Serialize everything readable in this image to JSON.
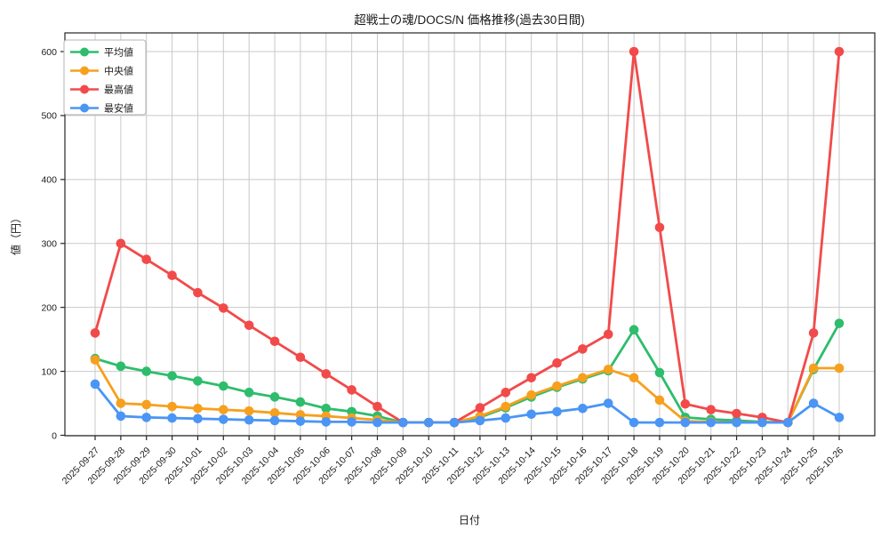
{
  "chart_data": {
    "type": "line",
    "title": "超戦士の魂/DOCS/N 価格推移(過去30日間)",
    "xlabel": "日付",
    "ylabel": "値（円）",
    "ylim": [
      0,
      630
    ],
    "yticks": [
      0,
      100,
      200,
      300,
      400,
      500,
      600
    ],
    "grid": true,
    "legend_position": "upper left",
    "categories": [
      "2025-09-27",
      "2025-09-28",
      "2025-09-29",
      "2025-09-30",
      "2025-10-01",
      "2025-10-02",
      "2025-10-03",
      "2025-10-04",
      "2025-10-05",
      "2025-10-06",
      "2025-10-07",
      "2025-10-08",
      "2025-10-09",
      "2025-10-10",
      "2025-10-11",
      "2025-10-12",
      "2025-10-13",
      "2025-10-14",
      "2025-10-15",
      "2025-10-16",
      "2025-10-17",
      "2025-10-18",
      "2025-10-19",
      "2025-10-20",
      "2025-10-21",
      "2025-10-22",
      "2025-10-23",
      "2025-10-24",
      "2025-10-25",
      "2025-10-26"
    ],
    "series": [
      {
        "name": "平均値",
        "color": "#2dbd6c",
        "values": [
          120,
          108,
          100,
          93,
          85,
          77,
          67,
          60,
          52,
          42,
          37,
          30,
          20,
          20,
          20,
          28,
          43,
          60,
          75,
          88,
          101,
          165,
          98,
          28,
          25,
          23,
          21,
          20,
          103,
          175
        ]
      },
      {
        "name": "中央値",
        "color": "#f7a01d",
        "values": [
          118,
          50,
          48,
          45,
          42,
          40,
          38,
          35,
          32,
          30,
          27,
          24,
          20,
          20,
          20,
          30,
          45,
          63,
          77,
          90,
          103,
          90,
          55,
          22,
          21,
          20,
          20,
          20,
          105,
          105
        ]
      },
      {
        "name": "最高値",
        "color": "#f24a4a",
        "values": [
          160,
          300,
          275,
          250,
          223,
          199,
          172,
          147,
          122,
          96,
          71,
          45,
          20,
          20,
          20,
          43,
          67,
          90,
          113,
          135,
          158,
          600,
          325,
          49,
          40,
          34,
          28,
          20,
          160,
          600
        ]
      },
      {
        "name": "最安値",
        "color": "#4a95f5",
        "values": [
          80,
          30,
          28,
          27,
          26,
          25,
          24,
          23,
          22,
          21,
          21,
          20,
          20,
          20,
          20,
          23,
          27,
          33,
          37,
          42,
          50,
          20,
          20,
          20,
          20,
          20,
          20,
          20,
          50,
          28
        ]
      }
    ]
  }
}
